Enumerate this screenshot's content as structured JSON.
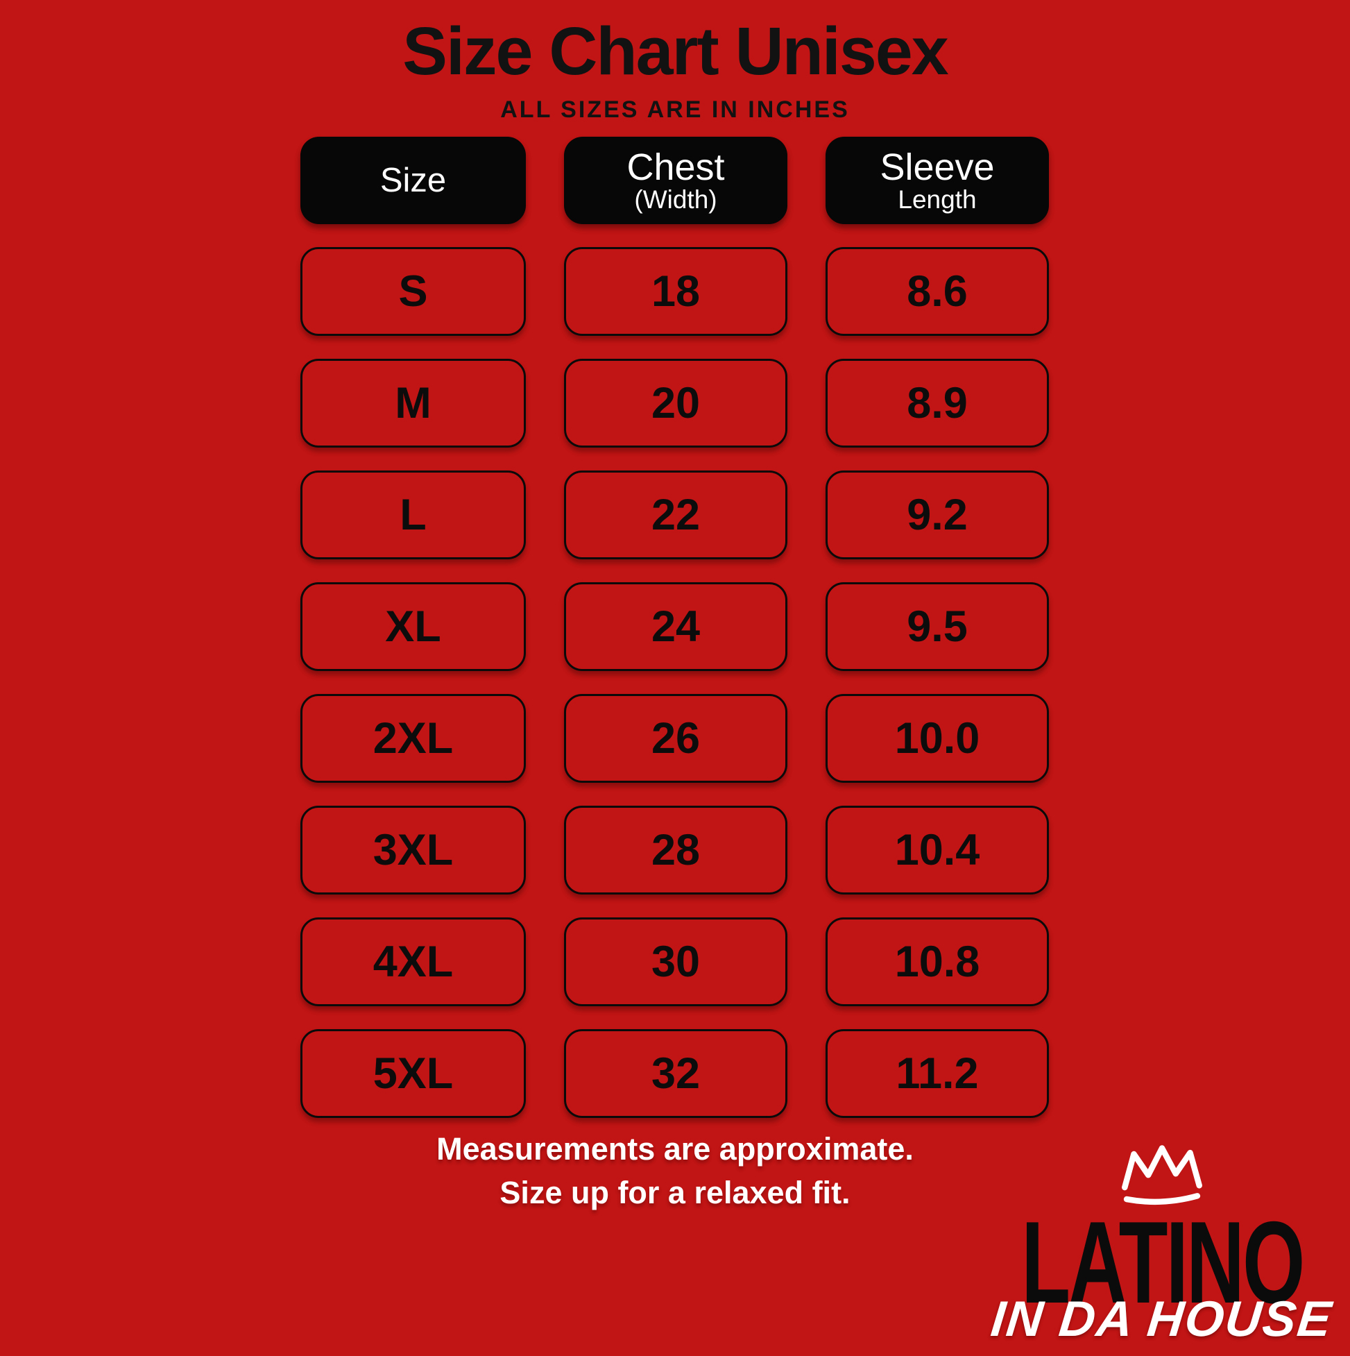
{
  "header": {
    "title": "Size Chart Unisex",
    "subtitle": "ALL SIZES ARE IN INCHES"
  },
  "table": {
    "columns": [
      {
        "label": "Size",
        "sublabel": ""
      },
      {
        "label": "Chest",
        "sublabel": "(Width)"
      },
      {
        "label": "Sleeve",
        "sublabel": "Length"
      }
    ],
    "rows": [
      {
        "size": "S",
        "chest": "18",
        "sleeve": "8.6"
      },
      {
        "size": "M",
        "chest": "20",
        "sleeve": "8.9"
      },
      {
        "size": "L",
        "chest": "22",
        "sleeve": "9.2"
      },
      {
        "size": "XL",
        "chest": "24",
        "sleeve": "9.5"
      },
      {
        "size": "2XL",
        "chest": "26",
        "sleeve": "10.0"
      },
      {
        "size": "3XL",
        "chest": "28",
        "sleeve": "10.4"
      },
      {
        "size": "4XL",
        "chest": "30",
        "sleeve": "10.8"
      },
      {
        "size": "5XL",
        "chest": "32",
        "sleeve": "11.2"
      }
    ]
  },
  "footer": {
    "line1": "Measurements are approximate.",
    "line2": "Size up for a relaxed fit."
  },
  "logo": {
    "icon": "crown-icon",
    "primary": "LATINO",
    "secondary": "IN DA HOUSE"
  },
  "colors": {
    "background": "#C11414",
    "header_box": "#070707",
    "header_text": "#FFFFFF",
    "cell_border": "#0A0A0A",
    "cell_text": "#0C0C0C",
    "footer_text": "#FFFFFF"
  },
  "chart_data": {
    "type": "table",
    "title": "Size Chart Unisex",
    "subtitle": "ALL SIZES ARE IN INCHES",
    "units": "inches",
    "columns": [
      "Size",
      "Chest (Width)",
      "Sleeve Length"
    ],
    "rows": [
      [
        "S",
        18,
        8.6
      ],
      [
        "M",
        20,
        8.9
      ],
      [
        "L",
        22,
        9.2
      ],
      [
        "XL",
        24,
        9.5
      ],
      [
        "2XL",
        26,
        10.0
      ],
      [
        "3XL",
        28,
        10.4
      ],
      [
        "4XL",
        30,
        10.8
      ],
      [
        "5XL",
        32,
        11.2
      ]
    ],
    "notes": [
      "Measurements are approximate.",
      "Size up for a relaxed fit."
    ]
  }
}
